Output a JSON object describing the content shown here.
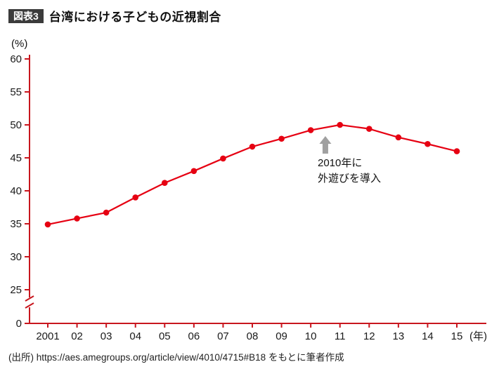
{
  "header": {
    "badge": "図表3",
    "title": "台湾における子どもの近視割合"
  },
  "footer": {
    "source": "(出所) https://aes.amegroups.org/article/view/4010/4715#B18 をもとに筆者作成"
  },
  "chart_data": {
    "type": "line",
    "title": "台湾における子どもの近視割合",
    "ylabel": "(%)",
    "x_unit": "(年)",
    "categories": [
      "2001",
      "02",
      "03",
      "04",
      "05",
      "06",
      "07",
      "08",
      "09",
      "10",
      "11",
      "12",
      "13",
      "14",
      "15"
    ],
    "values": [
      34.9,
      35.8,
      36.7,
      39.0,
      41.2,
      43.0,
      44.9,
      46.7,
      47.9,
      49.2,
      50.0,
      49.4,
      48.1,
      47.1,
      46.0
    ],
    "yticks": [
      60,
      55,
      50,
      45,
      40,
      35,
      30,
      25,
      0
    ],
    "ylim_main": [
      25,
      60
    ],
    "axis_break": true,
    "grid": false,
    "legend": "none",
    "line_color": "#e60012",
    "axis_color": "#c8161e",
    "annotation": {
      "lines": [
        "2010年に",
        "外遊びを導入"
      ],
      "arrow_color": "#a0a0a0",
      "target_year_index": 9.5
    }
  }
}
